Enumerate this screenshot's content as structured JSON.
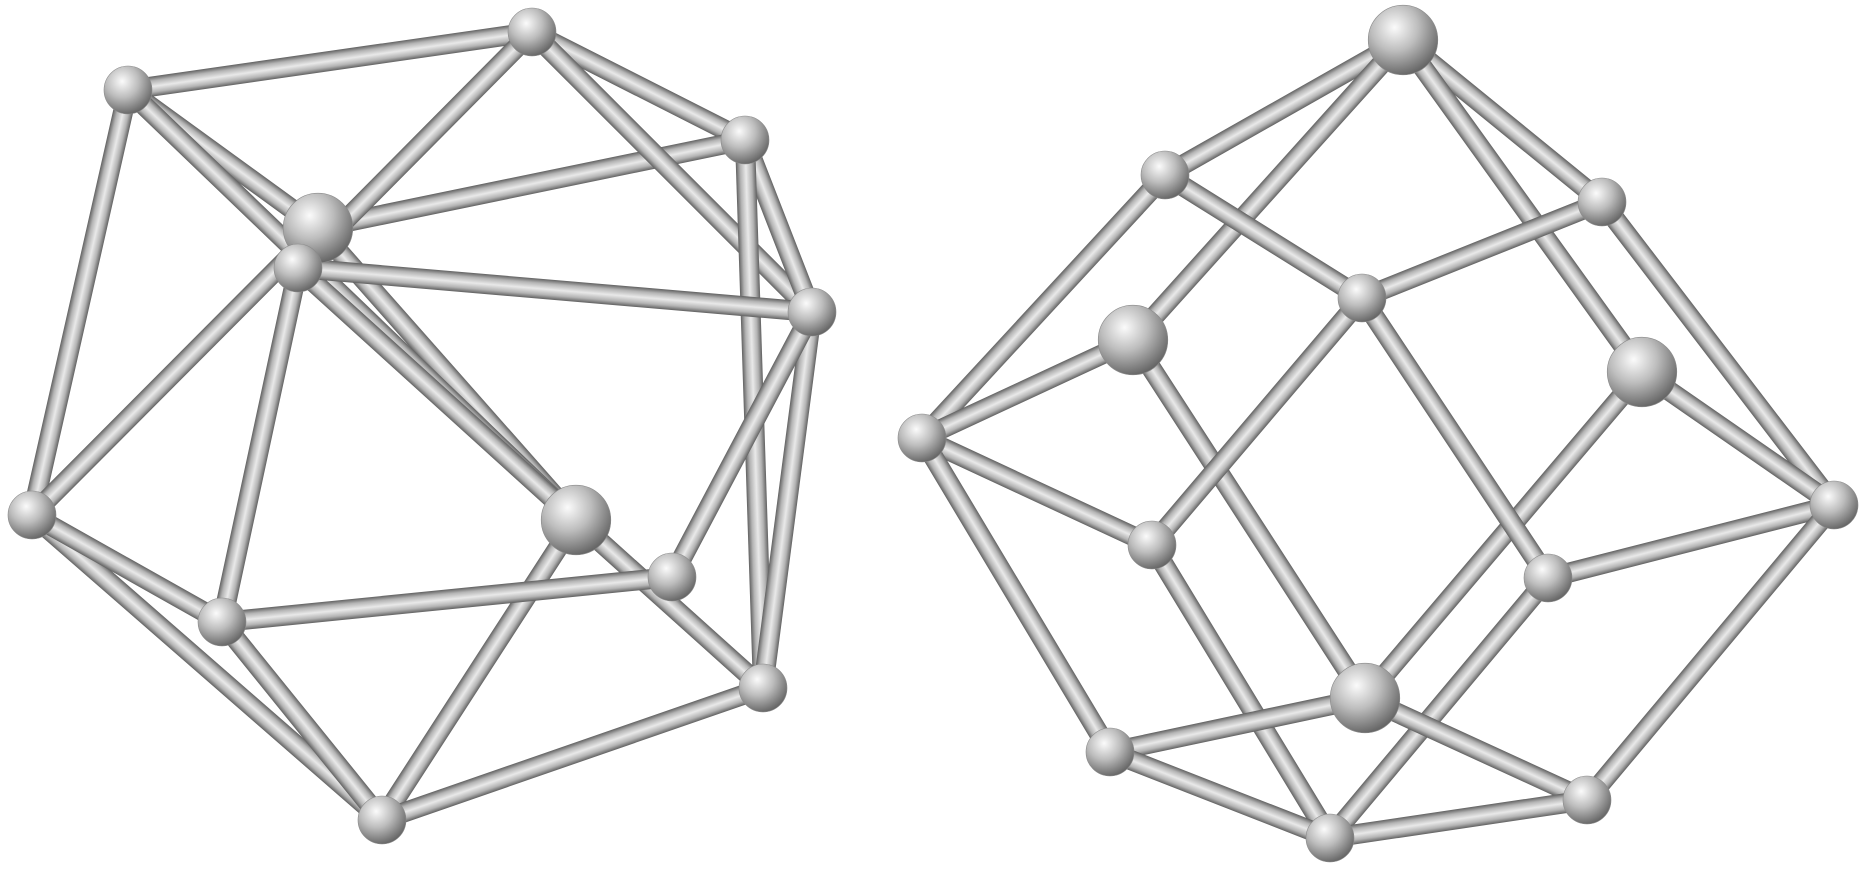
{
  "colors": {
    "background": "#ffffff",
    "rod_light": "#e9e9e9",
    "rod_mid": "#b4b4b4",
    "rod_dark": "#616161",
    "node_highlight": "#fbfbfb",
    "node_shadow": "#5a5a5a"
  },
  "figures": [
    {
      "name": "cuboctahedron-frame",
      "kind": "wireframe polyhedron (12 vertices, 24 edges)"
    },
    {
      "name": "rhombic-dodecahedron-frame",
      "kind": "wireframe polyhedron (14 vertices, 24 edges)"
    }
  ]
}
